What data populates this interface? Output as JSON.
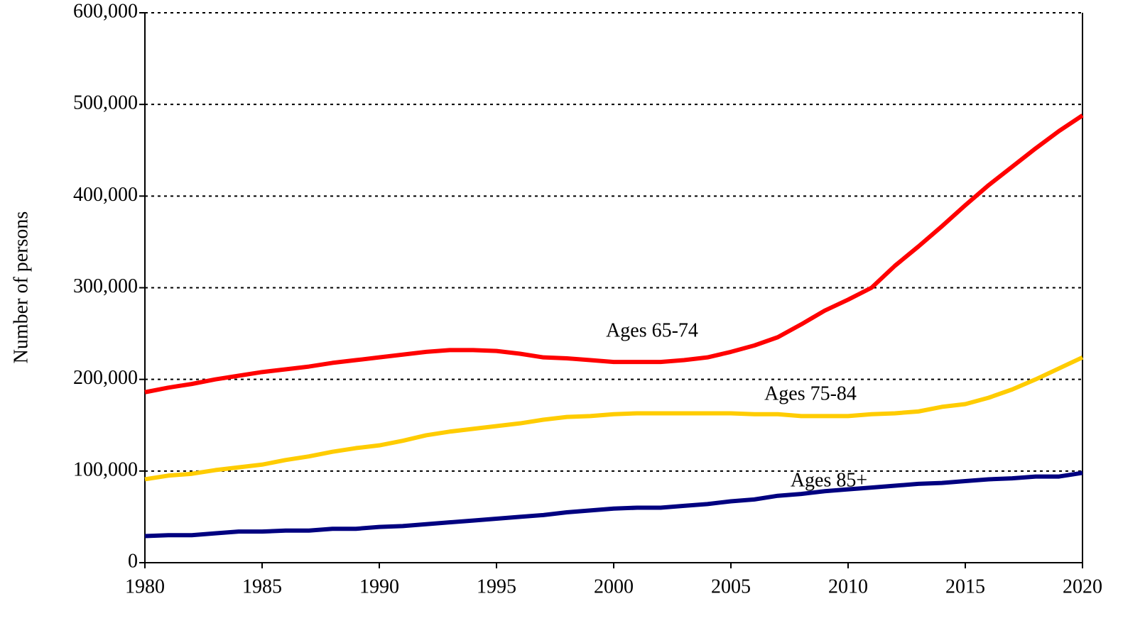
{
  "chart_data": {
    "type": "line",
    "ylabel": "Number of persons",
    "x": [
      1980,
      1981,
      1982,
      1983,
      1984,
      1985,
      1986,
      1987,
      1988,
      1989,
      1990,
      1991,
      1992,
      1993,
      1994,
      1995,
      1996,
      1997,
      1998,
      1999,
      2000,
      2001,
      2002,
      2003,
      2004,
      2005,
      2006,
      2007,
      2008,
      2009,
      2010,
      2011,
      2012,
      2013,
      2014,
      2015,
      2016,
      2017,
      2018,
      2019,
      2020
    ],
    "series": [
      {
        "name": "Ages 65-74",
        "color": "#ff0000",
        "values": [
          186000,
          191000,
          195000,
          200000,
          204000,
          208000,
          211000,
          214000,
          218000,
          221000,
          224000,
          227000,
          230000,
          232000,
          232000,
          231000,
          228000,
          224000,
          223000,
          221000,
          219000,
          219000,
          219000,
          221000,
          224000,
          230000,
          237000,
          246000,
          260000,
          275000,
          287000,
          300000,
          324000,
          345000,
          367000,
          390000,
          412000,
          432000,
          452000,
          471000,
          488000
        ]
      },
      {
        "name": "Ages 75-84",
        "color": "#ffcc00",
        "values": [
          91000,
          95000,
          97000,
          101000,
          104000,
          107000,
          112000,
          116000,
          121000,
          125000,
          128000,
          133000,
          139000,
          143000,
          146000,
          149000,
          152000,
          156000,
          159000,
          160000,
          162000,
          163000,
          163000,
          163000,
          163000,
          163000,
          162000,
          162000,
          160000,
          160000,
          160000,
          162000,
          163000,
          165000,
          170000,
          173000,
          180000,
          189000,
          200000,
          212000,
          224000
        ]
      },
      {
        "name": "Ages 85+",
        "color": "#000080",
        "values": [
          29000,
          30000,
          30000,
          32000,
          34000,
          34000,
          35000,
          35000,
          37000,
          37000,
          39000,
          40000,
          42000,
          44000,
          46000,
          48000,
          50000,
          52000,
          55000,
          57000,
          59000,
          60000,
          60000,
          62000,
          64000,
          67000,
          69000,
          73000,
          75000,
          78000,
          80000,
          82000,
          84000,
          86000,
          87000,
          89000,
          91000,
          92000,
          94000,
          94000,
          98000
        ]
      }
    ],
    "xlim": [
      1980,
      2020
    ],
    "xticks": [
      1980,
      1985,
      1990,
      1995,
      2000,
      2005,
      2010,
      2015,
      2020
    ],
    "ylim": [
      0,
      600000
    ],
    "yticks": [
      0,
      {
        "value": 100000,
        "label": "100,000"
      },
      {
        "value": 200000,
        "label": "200,000"
      },
      {
        "value": 300000,
        "label": "300,000"
      },
      {
        "value": 400000,
        "label": "400,000"
      },
      {
        "value": 500000,
        "label": "500,000"
      },
      {
        "value": 600000,
        "label": "600,000"
      }
    ],
    "grid": true
  }
}
